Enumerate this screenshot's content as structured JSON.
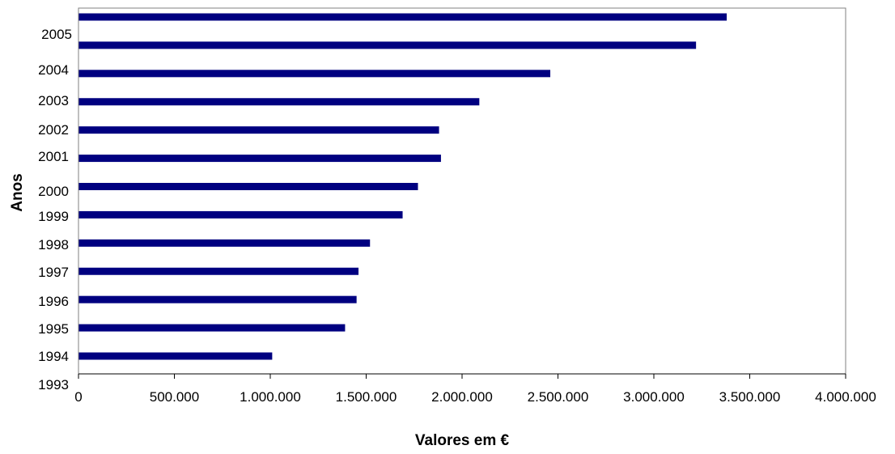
{
  "chart_data": {
    "type": "bar",
    "orientation": "horizontal",
    "xlabel": "Valores em €",
    "ylabel": "Anos",
    "xlim": [
      0,
      4000000
    ],
    "x_ticks": [
      0,
      500000,
      1000000,
      1500000,
      2000000,
      2500000,
      3000000,
      3500000,
      4000000
    ],
    "x_tick_labels": [
      "0",
      "500.000",
      "1.000.000",
      "1.500.000",
      "2.000.000",
      "2.500.000",
      "3.000.000",
      "3.500.000",
      "4.000.000"
    ],
    "y_tick_labels": [
      "2005",
      "2004",
      "2003",
      "2002",
      "2001",
      "2000",
      "1999",
      "1998",
      "1997",
      "1996",
      "1995",
      "1994",
      "1993"
    ],
    "values": [
      3380000,
      3220000,
      2460000,
      2090000,
      1880000,
      1890000,
      1770000,
      1690000,
      1520000,
      1460000,
      1450000,
      1390000,
      1010000
    ],
    "bar_color": "#000080",
    "grid": false,
    "legend": "none"
  }
}
